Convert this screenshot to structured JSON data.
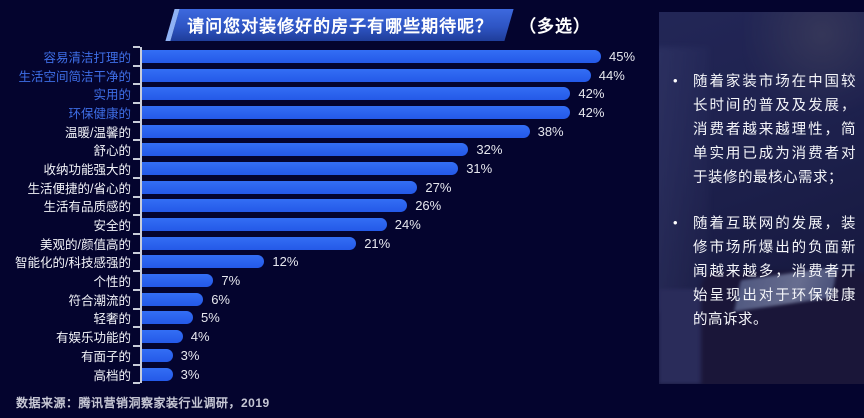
{
  "title": {
    "main": "请问您对装修好的房子有哪些期待呢？",
    "suffix": "（多选）"
  },
  "chart_data": {
    "type": "bar",
    "orientation": "horizontal",
    "title": "请问您对装修好的房子有哪些期待呢？（多选）",
    "xlabel": "",
    "ylabel": "",
    "xlim": [
      0,
      45
    ],
    "grid": false,
    "value_suffix": "%",
    "categories": [
      "容易清洁打理的",
      "生活空间简洁干净的",
      "实用的",
      "环保健康的",
      "温暖/温馨的",
      "舒心的",
      "收纳功能强大的",
      "生活便捷的/省心的",
      "生活有品质感的",
      "安全的",
      "美观的/颜值高的",
      "智能化的/科技感强的",
      "个性的",
      "符合潮流的",
      "轻奢的",
      "有娱乐功能的",
      "有面子的",
      "高档的"
    ],
    "values": [
      45,
      44,
      42,
      42,
      38,
      32,
      31,
      27,
      26,
      24,
      21,
      12,
      7,
      6,
      5,
      4,
      3,
      3
    ],
    "highlighted": [
      true,
      true,
      true,
      true,
      false,
      false,
      false,
      false,
      false,
      false,
      false,
      false,
      false,
      false,
      false,
      false,
      false,
      false
    ],
    "bar_color": "#2b63f0",
    "highlight_label_color": "#3e6ee6",
    "label_color": "#f2f3f8"
  },
  "panel": {
    "bullet_char": "•",
    "bullets": [
      "随着家装市场在中国较长时间的普及及发展，消费者越来越理性，简单实用已成为消费者对于装修的最核心需求；",
      "随着互联网的发展，装修市场所爆出的负面新闻越来越多，消费者开始呈现出对于环保健康的高诉求。"
    ]
  },
  "source": "数据来源：腾讯营销洞察家装行业调研，2019",
  "colors": {
    "background": "#04042e",
    "bar": "#2b63f0",
    "title_badge": "#2e55c4",
    "axis": "#c9cdda"
  }
}
